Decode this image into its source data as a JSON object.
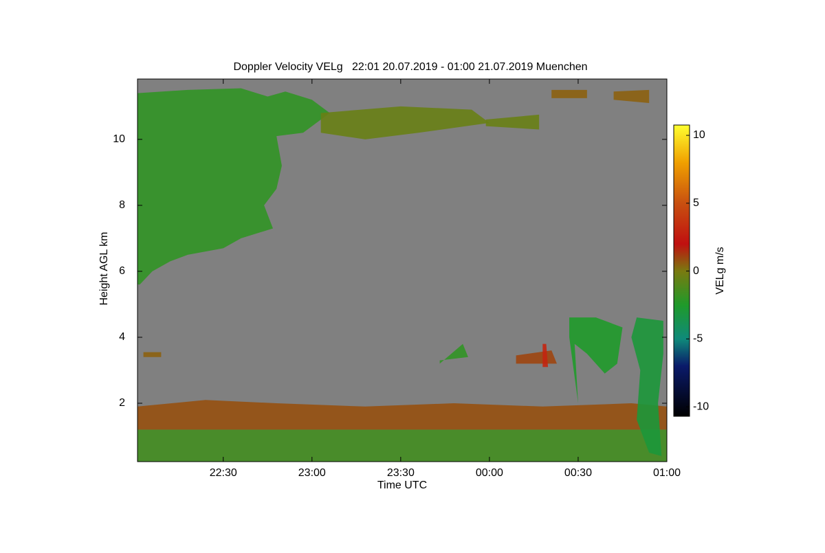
{
  "chart_data": {
    "type": "time-height",
    "title": "Doppler Velocity VELg   22:01 20.07.2019 - 01:00 21.07.2019 Muenchen",
    "xlabel": "Time UTC",
    "ylabel": "Height AGL km",
    "xlim": [
      22.0167,
      25.0
    ],
    "xticks": [
      {
        "value": 22.5,
        "label": "22:30"
      },
      {
        "value": 23.0,
        "label": "23:00"
      },
      {
        "value": 23.5,
        "label": "23:30"
      },
      {
        "value": 24.0,
        "label": "00:00"
      },
      {
        "value": 24.5,
        "label": "00:30"
      },
      {
        "value": 25.0,
        "label": "01:00"
      }
    ],
    "ylim": [
      0.23,
      11.83
    ],
    "yticks": [
      2,
      4,
      6,
      8,
      10
    ],
    "background": "#808080",
    "colorbar": {
      "label": "VELg m/s",
      "lim": [
        -10.7,
        10.76
      ],
      "ticks": [
        -10,
        -5,
        0,
        5,
        10
      ],
      "stops": [
        {
          "value": -10.7,
          "color": "#000000"
        },
        {
          "value": -7,
          "color": "#0a1a6a"
        },
        {
          "value": -5,
          "color": "#0f8a7a"
        },
        {
          "value": -2.5,
          "color": "#1f9a2a"
        },
        {
          "value": 0,
          "color": "#7a7a10"
        },
        {
          "value": 2,
          "color": "#c01010"
        },
        {
          "value": 5,
          "color": "#c85010"
        },
        {
          "value": 8,
          "color": "#f0a000"
        },
        {
          "value": 10.76,
          "color": "#ffff30"
        }
      ]
    },
    "echoes": [
      {
        "velocity": -1.5,
        "t": [
          22.0167,
          25.0,
          25.0,
          22.0167
        ],
        "h": [
          1.2,
          1.2,
          0.23,
          0.23
        ]
      },
      {
        "velocity": 0.8,
        "t": [
          22.0167,
          22.4,
          22.8,
          23.3,
          23.8,
          24.3,
          24.8,
          25.0,
          25.0,
          22.0167
        ],
        "h": [
          1.9,
          2.1,
          2.0,
          1.9,
          2.0,
          1.9,
          2.0,
          1.9,
          1.2,
          1.2
        ]
      },
      {
        "velocity": -2,
        "t": [
          22.0167,
          22.3,
          22.6,
          22.75,
          22.85,
          23.0,
          23.1,
          22.95,
          22.8,
          22.83,
          22.8,
          22.73,
          22.78,
          22.6,
          22.5,
          22.3,
          22.2,
          22.1,
          22.03,
          22.0167
        ],
        "h": [
          11.4,
          11.5,
          11.55,
          11.3,
          11.45,
          11.2,
          10.8,
          10.2,
          10.1,
          9.2,
          8.5,
          8.0,
          7.3,
          7.0,
          6.7,
          6.5,
          6.3,
          6.0,
          5.6,
          5.6
        ]
      },
      {
        "velocity": -0.5,
        "t": [
          23.05,
          23.5,
          23.9,
          24.0,
          23.6,
          23.3,
          23.05
        ],
        "h": [
          10.8,
          11.0,
          10.9,
          10.5,
          10.2,
          10.0,
          10.2
        ]
      },
      {
        "velocity": -0.5,
        "t": [
          23.98,
          24.28,
          24.28,
          23.98
        ],
        "h": [
          10.6,
          10.75,
          10.3,
          10.4
        ]
      },
      {
        "velocity": 0.5,
        "t": [
          24.35,
          24.55,
          24.55,
          24.35
        ],
        "h": [
          11.5,
          11.5,
          11.25,
          11.25
        ]
      },
      {
        "velocity": 0.5,
        "t": [
          24.7,
          24.9,
          24.9,
          24.7
        ],
        "h": [
          11.45,
          11.5,
          11.1,
          11.2
        ]
      },
      {
        "velocity": -2.5,
        "t": [
          24.45,
          24.6,
          24.75,
          24.72,
          24.65,
          24.55,
          24.48,
          24.5,
          24.45
        ],
        "h": [
          4.6,
          4.6,
          4.3,
          3.2,
          2.9,
          3.5,
          3.8,
          2.0,
          4.0
        ]
      },
      {
        "velocity": -3,
        "t": [
          24.83,
          24.98,
          24.98,
          24.95,
          24.97,
          24.9,
          24.83,
          24.85,
          24.8
        ],
        "h": [
          4.6,
          4.5,
          3.5,
          2.0,
          0.4,
          0.5,
          1.5,
          3.0,
          4.0
        ]
      },
      {
        "velocity": 1,
        "t": [
          24.15,
          24.35,
          24.38,
          24.15
        ],
        "h": [
          3.45,
          3.6,
          3.2,
          3.2
        ]
      },
      {
        "velocity": 3,
        "t": [
          24.3,
          24.32,
          24.33,
          24.3
        ],
        "h": [
          3.8,
          3.8,
          3.1,
          3.1
        ]
      },
      {
        "velocity": -2,
        "t": [
          23.72,
          23.85,
          23.88,
          23.72
        ],
        "h": [
          3.2,
          3.8,
          3.4,
          3.3
        ]
      },
      {
        "velocity": 0.5,
        "t": [
          22.05,
          22.15,
          22.15,
          22.05
        ],
        "h": [
          3.55,
          3.55,
          3.4,
          3.4
        ]
      }
    ]
  }
}
